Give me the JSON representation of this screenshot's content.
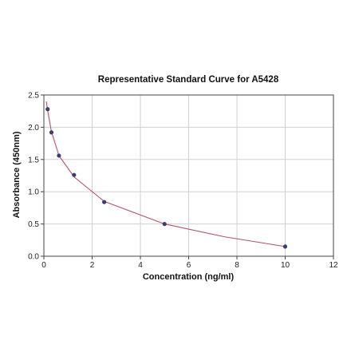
{
  "chart_data": {
    "type": "scatter",
    "title": "Representative Standard Curve for A5428",
    "xlabel": "Concentration (ng/ml)",
    "ylabel": "Absorbance (450nm)",
    "xlim": [
      0,
      12
    ],
    "ylim": [
      0,
      2.5
    ],
    "x_ticks": [
      0,
      2,
      4,
      6,
      8,
      10,
      12
    ],
    "y_ticks": [
      0.0,
      0.5,
      1.0,
      1.5,
      2.0,
      2.5
    ],
    "x_tick_labels": [
      "0",
      "2",
      "4",
      "6",
      "8",
      "10",
      "12"
    ],
    "y_tick_labels": [
      "0.0",
      "0.5",
      "1.0",
      "1.5",
      "2.0",
      "2.5"
    ],
    "grid": true,
    "series": [
      {
        "x": [
          0.156,
          0.313,
          0.625,
          1.25,
          2.5,
          5,
          10
        ],
        "y": [
          2.28,
          1.92,
          1.56,
          1.26,
          0.84,
          0.5,
          0.15
        ]
      }
    ],
    "fit_curve": {
      "x": [
        0.1,
        0.156,
        0.313,
        0.625,
        1.25,
        2.5,
        5,
        7.5,
        10
      ],
      "y": [
        2.4,
        2.26,
        1.93,
        1.56,
        1.23,
        0.85,
        0.5,
        0.3,
        0.15
      ]
    },
    "colors": {
      "points": "#3b3f6e",
      "curve": "#b5506e",
      "grid": "#d0d0d0",
      "frame": "#444444"
    }
  }
}
